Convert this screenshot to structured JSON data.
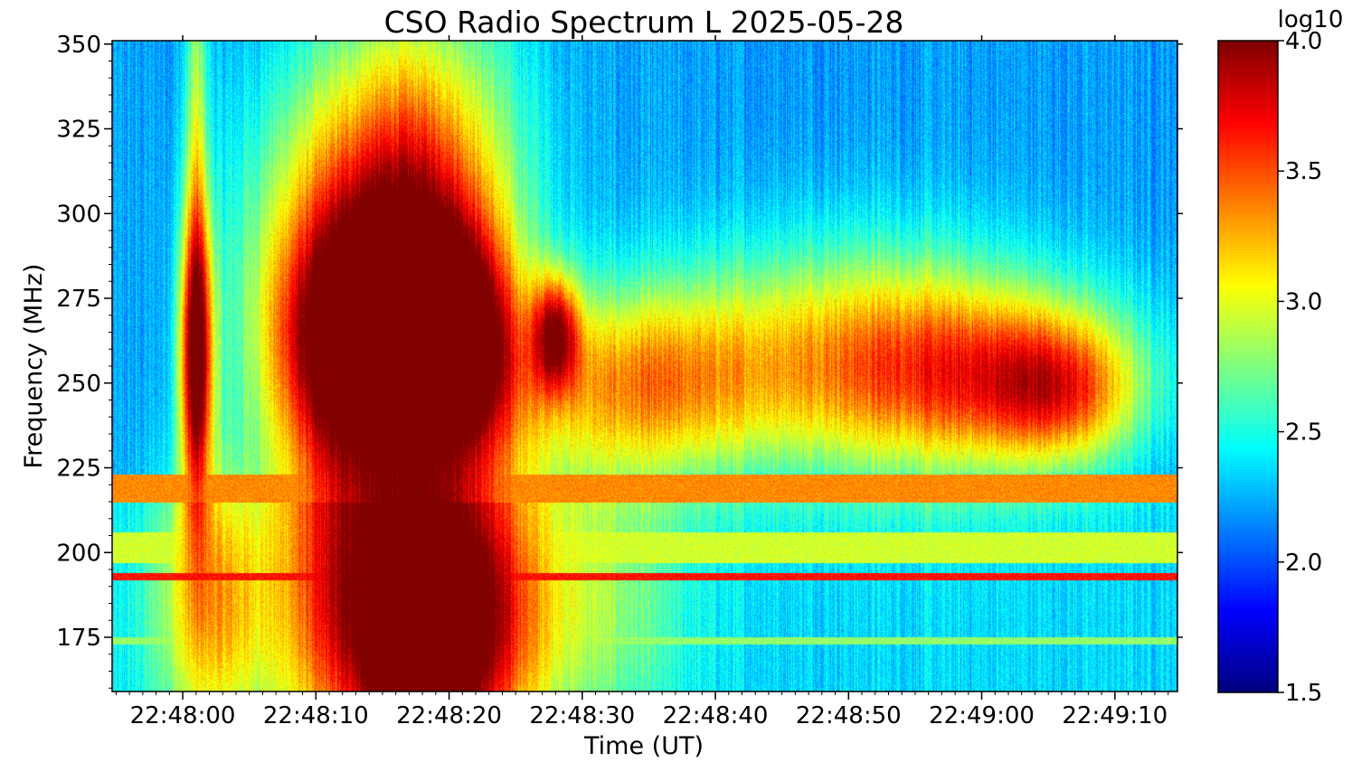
{
  "chart_data": {
    "type": "heatmap",
    "title": "CSO Radio Spectrum L 2025-05-28",
    "xlabel": "Time (UT)",
    "ylabel": "Frequency (MHz)",
    "x_ticks": [
      "22:48:00",
      "22:48:10",
      "22:48:20",
      "22:48:30",
      "22:48:40",
      "22:48:50",
      "22:49:00",
      "22:49:10"
    ],
    "x_tick_seconds": [
      0,
      10,
      20,
      30,
      40,
      50,
      60,
      70
    ],
    "xlim_seconds": [
      -5.3,
      74.7
    ],
    "y_ticks": [
      175,
      200,
      225,
      250,
      275,
      300,
      325,
      350
    ],
    "ylim": [
      159,
      351
    ],
    "colorbar": {
      "label": "log10",
      "range": [
        1.5,
        4.0
      ],
      "ticks": [
        "1.5",
        "2.0",
        "2.5",
        "3.0",
        "3.5",
        "4.0"
      ],
      "tick_values": [
        1.5,
        2.0,
        2.5,
        3.0,
        3.5,
        4.0
      ],
      "colormap": "jet"
    },
    "background_level": 2.2,
    "bursts": [
      {
        "t": 1.0,
        "f": 258,
        "dt": 0.9,
        "df": 30,
        "v": 1.7
      },
      {
        "t": 1.0,
        "f": 320,
        "dt": 0.6,
        "df": 60,
        "v": 0.6
      },
      {
        "t": 13.0,
        "f": 262,
        "dt": 4.5,
        "df": 25,
        "v": 1.7
      },
      {
        "t": 13.5,
        "f": 300,
        "dt": 6.0,
        "df": 35,
        "v": 0.9
      },
      {
        "t": 20.5,
        "f": 262,
        "dt": 3.0,
        "df": 22,
        "v": 1.6
      },
      {
        "t": 18.5,
        "f": 300,
        "dt": 5.0,
        "df": 45,
        "v": 0.9
      },
      {
        "t": 28.0,
        "f": 265,
        "dt": 1.2,
        "df": 12,
        "v": 1.2
      },
      {
        "t": 34.0,
        "f": 250,
        "dt": 7.0,
        "df": 20,
        "v": 1.0
      },
      {
        "t": 50.0,
        "f": 258,
        "dt": 9.0,
        "df": 25,
        "v": 0.8
      },
      {
        "t": 60.0,
        "f": 252,
        "dt": 8.0,
        "df": 20,
        "v": 0.9
      },
      {
        "t": 66.0,
        "f": 248,
        "dt": 4.0,
        "df": 15,
        "v": 0.8
      },
      {
        "t": 12.0,
        "f": 190,
        "dt": 4.0,
        "df": 40,
        "v": 1.3
      },
      {
        "t": 17.5,
        "f": 175,
        "dt": 3.0,
        "df": 30,
        "v": 1.7
      },
      {
        "t": 22.0,
        "f": 182,
        "dt": 3.5,
        "df": 35,
        "v": 1.3
      },
      {
        "t": 2.0,
        "f": 185,
        "dt": 3.0,
        "df": 30,
        "v": 0.9
      },
      {
        "t": 30.0,
        "f": 185,
        "dt": 5.0,
        "df": 30,
        "v": 0.5
      }
    ],
    "interference_bands": [
      {
        "f0": 215,
        "f1": 223,
        "v": 3.35
      },
      {
        "f0": 192,
        "f1": 194,
        "v": 3.65
      },
      {
        "f0": 197,
        "f1": 206,
        "v": 2.95
      },
      {
        "f0": 173,
        "f1": 175,
        "v": 2.8
      }
    ]
  }
}
